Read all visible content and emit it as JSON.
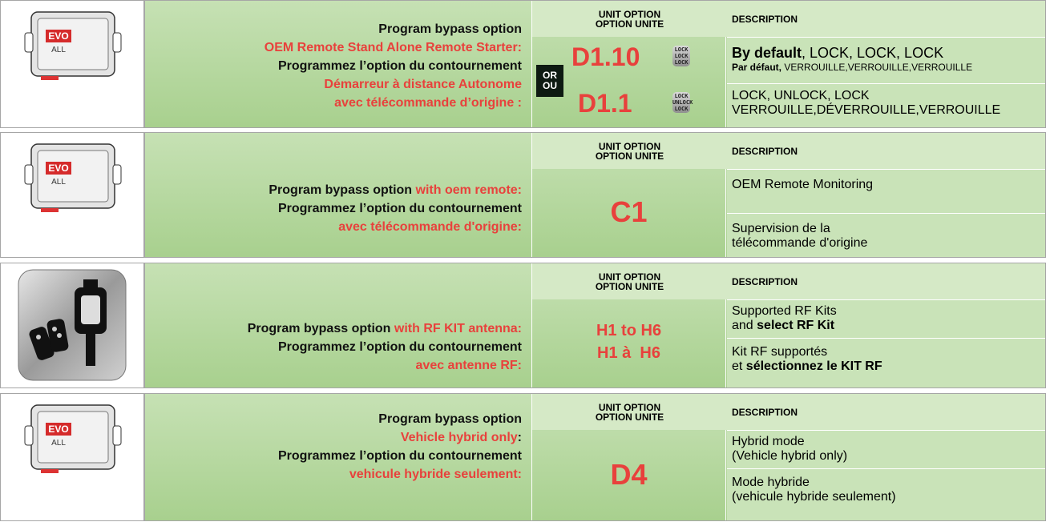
{
  "device": {
    "logo": "EVO",
    "label": "ALL"
  },
  "sections": [
    {
      "title": [
        "Program bypass option",
        "OEM Remote Stand Alone Remote Starter:",
        "Programmez l’option du contournement",
        "Démarreur à distance Autonome",
        "avec télécommande d’origine :"
      ],
      "unit_header": [
        "UNIT OPTION",
        "OPTION UNITE"
      ],
      "description_header": "DESCRIPTION",
      "or_label": [
        "OR",
        "OU"
      ],
      "options": [
        {
          "code": "D1.10",
          "icon": [
            "LOCK",
            "LOCK",
            "LOCK"
          ],
          "description": [
            "By default",
            ", LOCK, LOCK, LOCK",
            "Par défaut,",
            " VERROUILLE,VERROUILLE,VERROUILLE"
          ]
        },
        {
          "code": "D1.1",
          "icon": [
            "LOCK",
            "UNLOCK",
            "LOCK"
          ],
          "description": [
            "LOCK, UNLOCK, LOCK",
            "VERROUILLE,DÉVERROUILLE,VERROUILLE"
          ]
        }
      ]
    },
    {
      "title": [
        "Program bypass option",
        "with oem remote:",
        "Programmez l’option du contournement",
        "avec télécommande d'origine:"
      ],
      "unit_header": [
        "UNIT OPTION",
        "OPTION UNITE"
      ],
      "description_header": "DESCRIPTION",
      "code": "C1",
      "descriptions": [
        [
          "OEM Remote Monitoring"
        ],
        [
          "Supervision de la",
          "télécommande d'origine"
        ]
      ]
    },
    {
      "title": [
        "Program bypass option",
        "with RF KIT antenna:",
        "Programmez l’option du contournement",
        "avec antenne RF:"
      ],
      "unit_header": [
        "UNIT OPTION",
        "OPTION UNITE"
      ],
      "description_header": "DESCRIPTION",
      "codes": [
        "H1 to H6",
        "H1 à  H6"
      ],
      "descriptions": [
        [
          "Supported RF Kits",
          "and",
          "select RF Kit"
        ],
        [
          "Kit RF supportés",
          "et",
          "sélectionnez le KIT RF"
        ]
      ]
    },
    {
      "title": [
        "Program bypass option",
        "Vehicle hybrid only",
        ":",
        "Programmez l’option du contournement",
        "vehicule hybride seulement:"
      ],
      "unit_header": [
        "UNIT OPTION",
        "OPTION UNITE"
      ],
      "description_header": "DESCRIPTION",
      "code": "D4",
      "descriptions": [
        [
          "Hybrid mode",
          "(Vehicle hybrid only)"
        ],
        [
          "Mode hybride",
          "(vehicule hybride seulement)"
        ]
      ]
    }
  ]
}
